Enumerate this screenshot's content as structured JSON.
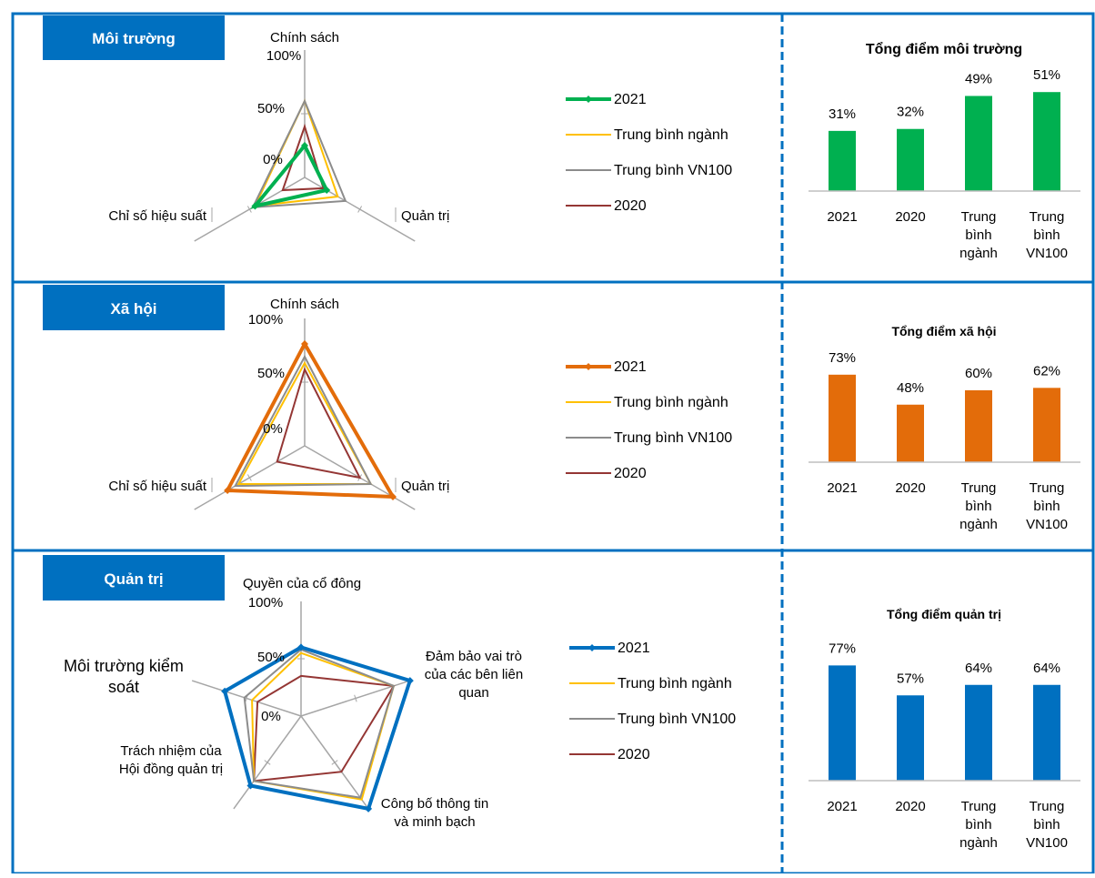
{
  "colors": {
    "border": "#0070c0",
    "badge": "#0070c0",
    "industry_avg": "#ffc000",
    "vn100_avg": "#8c8c8c",
    "y2020": "#943634",
    "env": "#00b050",
    "soc": "#e36c0a",
    "gov": "#0070c0"
  },
  "sections": [
    {
      "badge": "Môi trường",
      "bar_title": "Tổng điểm môi trường",
      "accent": "#00b050"
    },
    {
      "badge": "Xã hội",
      "bar_title": "Tổng điểm xã hội",
      "accent": "#e36c0a"
    },
    {
      "badge": "Quản trị",
      "bar_title": "Tổng điểm quản trị",
      "accent": "#0070c0"
    }
  ],
  "chart_data": [
    {
      "type": "radar",
      "axes": [
        "Chính sách",
        "Quản trị",
        "Chỉ số hiệu suất"
      ],
      "scale_ticks": [
        "100%",
        "50%",
        "0%"
      ],
      "scale_range": [
        0,
        100
      ],
      "series": [
        {
          "name": "2021",
          "values": [
            25,
            20,
            45
          ]
        },
        {
          "name": "Trung bình ngành",
          "values": [
            60,
            30,
            45
          ]
        },
        {
          "name": "Trung bình VN100",
          "values": [
            60,
            37,
            47
          ]
        },
        {
          "name": "2020",
          "values": [
            40,
            17,
            20
          ]
        }
      ],
      "legend": [
        "2021",
        "Trung bình ngành",
        "Trung bình VN100",
        "2020"
      ],
      "legend_position": "right"
    },
    {
      "type": "bar",
      "title": "Tổng điểm môi trường",
      "categories": [
        "2021",
        "2020",
        "Trung bình ngành",
        "Trung bình VN100"
      ],
      "values": [
        31,
        32,
        49,
        51
      ],
      "value_labels": [
        "31%",
        "32%",
        "49%",
        "51%"
      ],
      "ylim": [
        0,
        60
      ]
    },
    {
      "type": "radar",
      "axes": [
        "Chính sách",
        "Quản trị",
        "Chỉ số hiệu suất"
      ],
      "scale_ticks": [
        "100%",
        "50%",
        "0%"
      ],
      "scale_range": [
        0,
        100
      ],
      "series": [
        {
          "name": "2021",
          "values": [
            80,
            80,
            70
          ]
        },
        {
          "name": "Trung bình ngành",
          "values": [
            65,
            60,
            60
          ]
        },
        {
          "name": "Trung bình VN100",
          "values": [
            70,
            60,
            63
          ]
        },
        {
          "name": "2020",
          "values": [
            60,
            50,
            25
          ]
        }
      ],
      "legend": [
        "2021",
        "Trung bình ngành",
        "Trung bình VN100",
        "2020"
      ],
      "legend_position": "right"
    },
    {
      "type": "bar",
      "title": "Tổng điểm xã hội",
      "categories": [
        "2021",
        "2020",
        "Trung bình ngành",
        "Trung bình VN100"
      ],
      "values": [
        73,
        48,
        60,
        62
      ],
      "value_labels": [
        "73%",
        "48%",
        "60%",
        "62%"
      ],
      "ylim": [
        0,
        85
      ]
    },
    {
      "type": "radar",
      "axes": [
        "Quyền của cổ đông",
        "Đảm bảo vai trò của các bên liên quan",
        "Công bố thông tin và minh bạch",
        "Trách nhiệm của Hội đồng quản trị",
        "Môi trường kiểm soát"
      ],
      "scale_ticks": [
        "100%",
        "50%",
        "0%"
      ],
      "scale_range": [
        0,
        100
      ],
      "series": [
        {
          "name": "2021",
          "values": [
            60,
            100,
            100,
            75,
            70
          ]
        },
        {
          "name": "Trung bình ngành",
          "values": [
            55,
            85,
            90,
            70,
            45
          ]
        },
        {
          "name": "Trung bình VN100",
          "values": [
            58,
            85,
            88,
            70,
            52
          ]
        },
        {
          "name": "2020",
          "values": [
            35,
            85,
            60,
            70,
            40
          ]
        }
      ],
      "legend": [
        "2021",
        "Trung bình ngành",
        "Trung bình VN100",
        "2020"
      ],
      "legend_position": "right"
    },
    {
      "type": "bar",
      "title": "Tổng điểm quản trị",
      "categories": [
        "2021",
        "2020",
        "Trung bình ngành",
        "Trung bình VN100"
      ],
      "values": [
        77,
        57,
        64,
        64
      ],
      "value_labels": [
        "77%",
        "57%",
        "64%",
        "64%"
      ],
      "ylim": [
        0,
        90
      ]
    }
  ]
}
